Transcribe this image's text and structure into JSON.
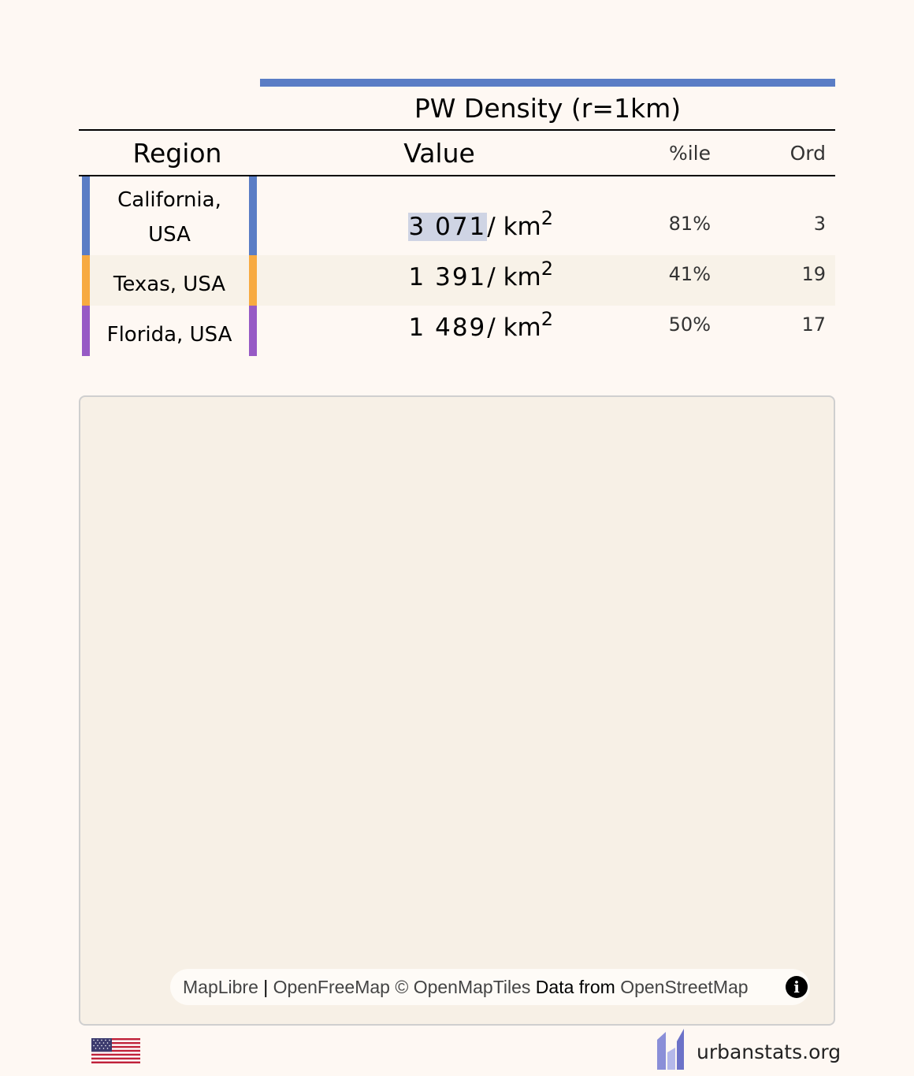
{
  "statistic": {
    "title": "PW Density (r=1km)",
    "bar_color": "#5a7dc5"
  },
  "columns": {
    "region": "Region",
    "value": "Value",
    "percentile": "%ile",
    "ordinal": "Ord"
  },
  "rows": [
    {
      "region_line1": "California,",
      "region_line2": "USA",
      "value": "3 071",
      "unit": "/ km",
      "unit_power": "2",
      "percentile": "81%",
      "ordinal": "3",
      "color": "#5a7dc5"
    },
    {
      "region": "Texas, USA",
      "value": "1 391",
      "unit": "/ km",
      "unit_power": "2",
      "percentile": "41%",
      "ordinal": "19",
      "color": "#f7aa41"
    },
    {
      "region": "Florida, USA",
      "value": "1 489",
      "unit": "/ km",
      "unit_power": "2",
      "percentile": "50%",
      "ordinal": "17",
      "color": "#975ac5"
    }
  ],
  "map": {
    "attribution": {
      "maplibre": "MapLibre",
      "sep": " | ",
      "openfreemap": "OpenFreeMap",
      "copyright": " © ",
      "openmaptiles": "OpenMapTiles",
      "data_from": " Data from ",
      "openstreetmap": "OpenStreetMap"
    },
    "info_icon": "info-icon"
  },
  "footer": {
    "flag_icon": "us-flag-icon",
    "site_name": "urbanstats.org"
  }
}
